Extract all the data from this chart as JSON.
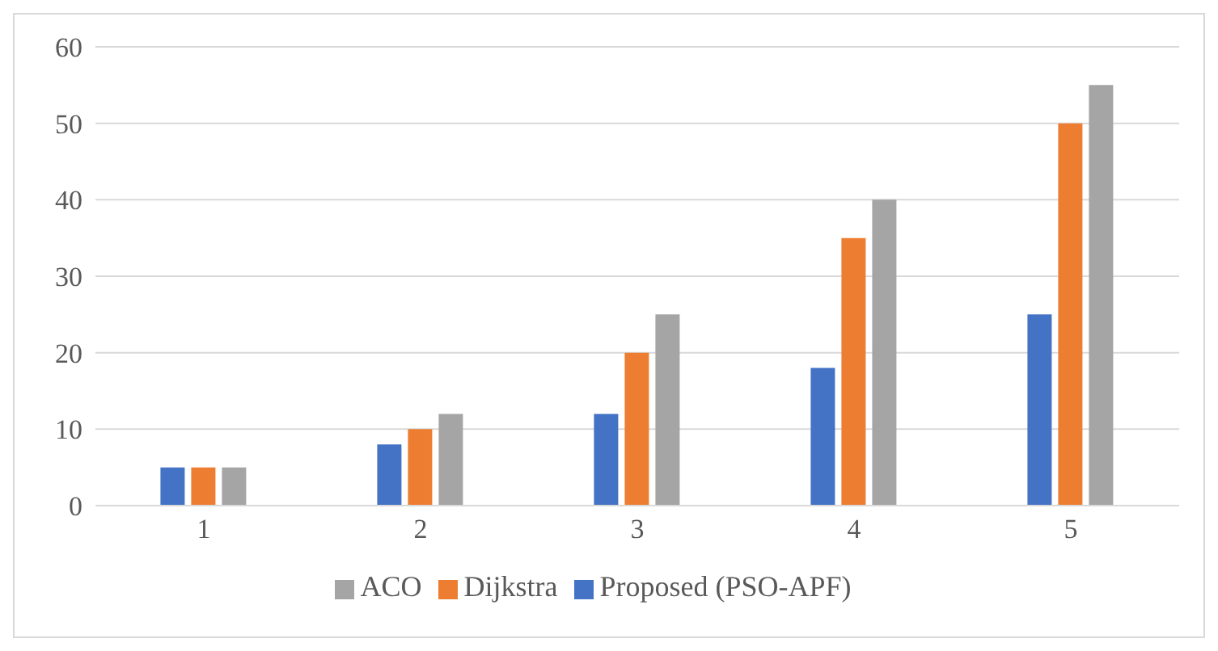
{
  "chart_data": {
    "type": "bar",
    "categories": [
      "1",
      "2",
      "3",
      "4",
      "5"
    ],
    "series": [
      {
        "name": "Proposed (PSO-APF)",
        "color": "#4472c4",
        "values": [
          5,
          8,
          12,
          18,
          25
        ]
      },
      {
        "name": "Dijkstra",
        "color": "#ed7d31",
        "values": [
          5,
          10,
          20,
          35,
          50
        ]
      },
      {
        "name": "ACO",
        "color": "#a5a5a5",
        "values": [
          5,
          12,
          25,
          40,
          55
        ]
      }
    ],
    "ylim": [
      0,
      60
    ],
    "yticks": [
      0,
      10,
      20,
      30,
      40,
      50,
      60
    ],
    "grid": "y",
    "legend": "bottom"
  }
}
